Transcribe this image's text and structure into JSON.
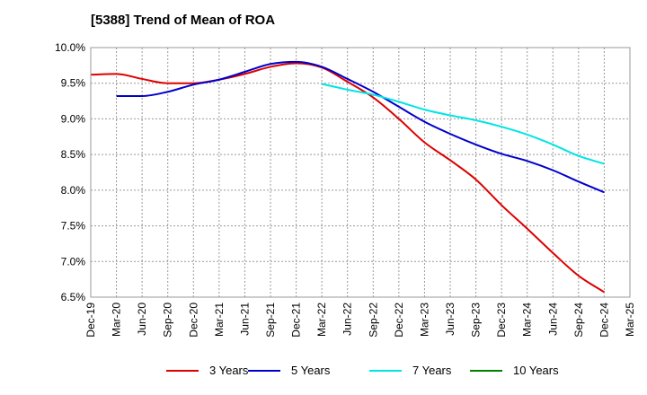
{
  "chart_data": {
    "type": "line",
    "title": "[5388]  Trend of Mean of ROA",
    "xlabel": "",
    "ylabel": "",
    "ylim": [
      6.5,
      10.0
    ],
    "yticks": [
      6.5,
      7.0,
      7.5,
      8.0,
      8.5,
      9.0,
      9.5,
      10.0
    ],
    "ytick_labels": [
      "6.5%",
      "7.0%",
      "7.5%",
      "8.0%",
      "8.5%",
      "9.0%",
      "9.5%",
      "10.0%"
    ],
    "categories": [
      "Dec-19",
      "Mar-20",
      "Jun-20",
      "Sep-20",
      "Dec-20",
      "Mar-21",
      "Jun-21",
      "Sep-21",
      "Dec-21",
      "Mar-22",
      "Jun-22",
      "Sep-22",
      "Dec-22",
      "Mar-23",
      "Jun-23",
      "Sep-23",
      "Dec-23",
      "Mar-24",
      "Jun-24",
      "Sep-24",
      "Dec-24",
      "Mar-25"
    ],
    "grid": true,
    "legend_position": "bottom",
    "series": [
      {
        "name": "3 Years",
        "color": "#dd0000",
        "values": [
          9.62,
          9.63,
          9.56,
          9.5,
          9.5,
          9.55,
          9.63,
          9.73,
          9.78,
          9.72,
          9.52,
          9.3,
          9.0,
          8.67,
          8.42,
          8.15,
          7.79,
          7.46,
          7.12,
          6.8,
          6.57,
          null
        ]
      },
      {
        "name": "5 Years",
        "color": "#0000cc",
        "values": [
          null,
          9.32,
          9.32,
          9.38,
          9.48,
          9.55,
          9.66,
          9.77,
          9.8,
          9.73,
          9.56,
          9.38,
          9.17,
          8.96,
          8.79,
          8.64,
          8.51,
          8.41,
          8.28,
          8.12,
          7.97,
          null
        ]
      },
      {
        "name": "7 Years",
        "color": "#00e5e5",
        "values": [
          null,
          null,
          null,
          null,
          null,
          null,
          null,
          null,
          null,
          9.49,
          9.41,
          9.34,
          9.24,
          9.13,
          9.05,
          8.98,
          8.89,
          8.78,
          8.64,
          8.48,
          8.37,
          null
        ]
      },
      {
        "name": "10 Years",
        "color": "#008000",
        "values": [
          null,
          null,
          null,
          null,
          null,
          null,
          null,
          null,
          null,
          null,
          null,
          null,
          null,
          null,
          null,
          null,
          null,
          null,
          null,
          null,
          null,
          null
        ]
      }
    ]
  }
}
